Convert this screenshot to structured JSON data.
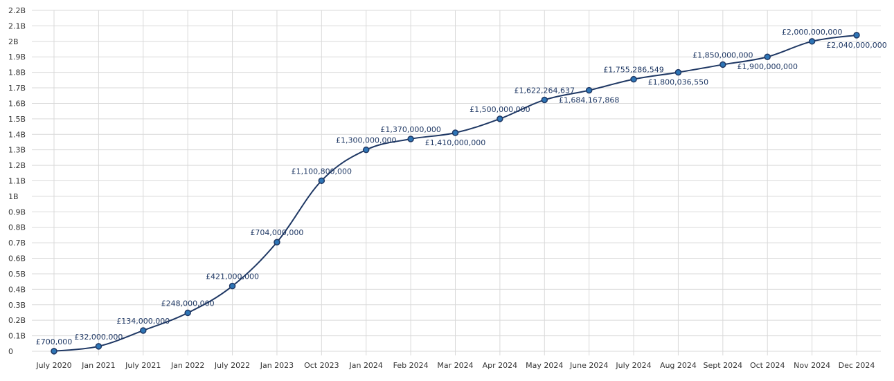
{
  "chart_data": {
    "type": "line",
    "title": "",
    "xlabel": "",
    "ylabel": "",
    "ylim": [
      0,
      2200000000
    ],
    "grid": true,
    "legend": "none",
    "y_ticks": [
      "0",
      "0.1B",
      "0.2B",
      "0.3B",
      "0.4B",
      "0.5B",
      "0.6B",
      "0.7B",
      "0.8B",
      "0.9B",
      "1B",
      "1.1B",
      "1.2B",
      "1.3B",
      "1.4B",
      "1.5B",
      "1.6B",
      "1.7B",
      "1.8B",
      "1.9B",
      "2B",
      "2.1B",
      "2.2B"
    ],
    "categories": [
      "July 2020",
      "Jan 2021",
      "July 2021",
      "Jan 2022",
      "July 2022",
      "Jan 2023",
      "Oct 2023",
      "Jan 2024",
      "Feb 2024",
      "Mar 2024",
      "Apr 2024",
      "May 2024",
      "June 2024",
      "July 2024",
      "Aug 2024",
      "Sept 2024",
      "Oct 2024",
      "Nov 2024",
      "Dec 2024"
    ],
    "values": [
      700000,
      32000000,
      134000000,
      248000000,
      421000000,
      704000000,
      1100800000,
      1300000000,
      1370000000,
      1410000000,
      1500000000,
      1622264637,
      1684167868,
      1755286549,
      1800036550,
      1850000000,
      1900000000,
      2000000000,
      2040000000
    ],
    "labels": [
      "£700,000",
      "£32,000,000",
      "£134,000,000",
      "£248,000,000",
      "£421,000,000",
      "£704,000,000",
      "£1,100,800,000",
      "£1,300,000,000",
      "£1,370,000,000",
      "£1,410,000,000",
      "£1,500,000,000",
      "£1,622,264,637",
      "£1,684,167,868",
      "£1,755,286,549",
      "£1,800,036,550",
      "£1,850,000,000",
      "£1,900,000,000",
      "£2,000,000,000",
      "£2,040,000,000"
    ],
    "label_side": [
      "above",
      "above",
      "above",
      "above",
      "above",
      "above",
      "above",
      "above",
      "above",
      "below",
      "above",
      "above",
      "below",
      "above",
      "below",
      "above",
      "below",
      "above",
      "below"
    ],
    "colors": {
      "line": "#1f3864",
      "marker_fill": "#2e75b6",
      "marker_stroke": "#1f3864",
      "label": "#1f3864",
      "grid": "#d9d9d9"
    }
  }
}
